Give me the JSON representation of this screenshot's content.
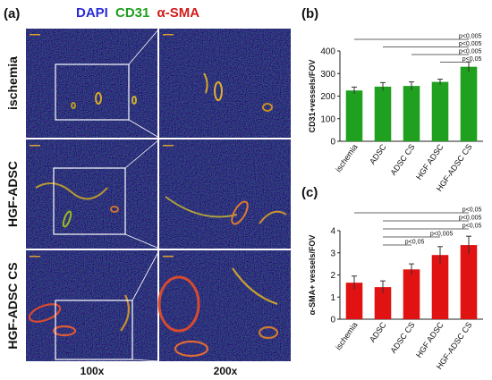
{
  "panels": {
    "a": {
      "letter": "(a)",
      "stain_labels": [
        {
          "text": "DAPI",
          "color": "#2b2bd6"
        },
        {
          "text": "CD31",
          "color": "#1f9e1f"
        },
        {
          "text": "α-SMA",
          "color": "#d11a1a"
        }
      ],
      "rows": [
        "ischemia",
        "HGF-ADSC",
        "HGF-ADSC CS"
      ],
      "columns": [
        "100x",
        "200x"
      ]
    },
    "b": {
      "letter": "(b)"
    },
    "c": {
      "letter": "(c)"
    }
  },
  "chart_data": [
    {
      "type": "bar",
      "panel": "b",
      "categories": [
        "ischemia",
        "ADSC",
        "ADSC CS",
        "HGF ADSC",
        "HGF-ADSC CS"
      ],
      "values": [
        225,
        242,
        245,
        263,
        330
      ],
      "errors": [
        15,
        18,
        18,
        12,
        22
      ],
      "ylabel": "CD31+vessels/FOV",
      "ylim": [
        0,
        400
      ],
      "yticks": [
        0,
        100,
        200,
        300,
        400
      ],
      "bar_color": "#1fa01f",
      "significance": [
        {
          "from": "ischemia",
          "to": "HGF-ADSC CS",
          "label": "p<0,005"
        },
        {
          "from": "ADSC",
          "to": "HGF-ADSC CS",
          "label": "p<0,005"
        },
        {
          "from": "ADSC CS",
          "to": "HGF-ADSC CS",
          "label": "p<0,005"
        },
        {
          "from": "HGF ADSC",
          "to": "HGF-ADSC CS",
          "label": "p<0,05"
        }
      ]
    },
    {
      "type": "bar",
      "panel": "c",
      "categories": [
        "ischemia",
        "ADSC",
        "ADSC CS",
        "HGF ADSC",
        "HGF-ADSC CS"
      ],
      "values": [
        1.65,
        1.45,
        2.25,
        2.9,
        3.35
      ],
      "errors": [
        0.3,
        0.28,
        0.25,
        0.38,
        0.4
      ],
      "ylabel": "α-SMA+ vessels/FOV",
      "ylim": [
        0,
        4
      ],
      "yticks": [
        0,
        1,
        2,
        3,
        4
      ],
      "bar_color": "#e01212",
      "significance": [
        {
          "from": "ischemia",
          "to": "HGF-ADSC CS",
          "label": "p<0,05"
        },
        {
          "from": "ADSC",
          "to": "HGF-ADSC CS",
          "label": "p<0,005"
        },
        {
          "from": "ADSC",
          "to": "HGF-ADSC CS",
          "label": "p<0,05"
        },
        {
          "from": "ADSC",
          "to": "HGF ADSC",
          "label": "p<0,005"
        },
        {
          "from": "ADSC",
          "to": "ADSC CS",
          "label": "p<0,05"
        }
      ]
    }
  ]
}
